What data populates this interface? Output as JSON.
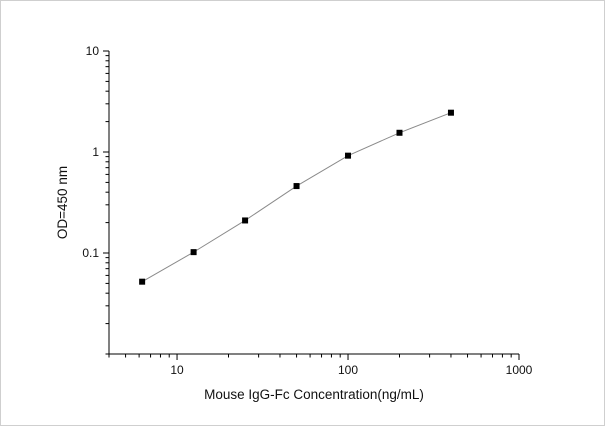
{
  "chart_data": {
    "type": "scatter",
    "title": "",
    "xlabel": "Mouse IgG-Fc  Concentration(ng/mL)",
    "ylabel": "OD=450 nm",
    "x_scale": "log",
    "y_scale": "log",
    "xlim": [
      4,
      1000
    ],
    "ylim": [
      0.01,
      10
    ],
    "x_ticks": [
      {
        "value": 10,
        "label": "10"
      },
      {
        "value": 100,
        "label": "100"
      },
      {
        "value": 1000,
        "label": "1000"
      }
    ],
    "y_ticks": [
      {
        "value": 0.1,
        "label": "0.1"
      },
      {
        "value": 1,
        "label": "1"
      },
      {
        "value": 10,
        "label": "10"
      }
    ],
    "grid": false,
    "legend": "none",
    "series": [
      {
        "x": [
          6.25,
          12.5,
          25,
          50,
          100,
          200,
          400
        ],
        "y": [
          0.052,
          0.102,
          0.21,
          0.46,
          0.92,
          1.55,
          2.45
        ],
        "marker": "square",
        "connected": true
      }
    ],
    "colors": {
      "marker": "#000000",
      "line": "#8a8a8a",
      "axis": "#000000"
    }
  }
}
